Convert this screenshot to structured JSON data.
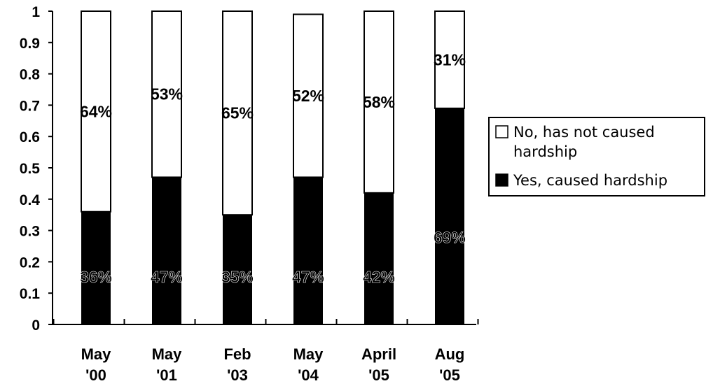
{
  "chart_data": {
    "type": "bar",
    "stacked": true,
    "categories": [
      [
        "May",
        "'00"
      ],
      [
        "May",
        "'01"
      ],
      [
        "Feb",
        "'03"
      ],
      [
        "May",
        "'04"
      ],
      [
        "April",
        "'05"
      ],
      [
        "Aug",
        "'05"
      ]
    ],
    "series": [
      {
        "name": "Yes, caused hardship",
        "values": [
          0.36,
          0.47,
          0.35,
          0.47,
          0.42,
          0.69
        ],
        "labels": [
          "36%",
          "47%",
          "35%",
          "47%",
          "42%",
          "69%"
        ],
        "color": "#000000"
      },
      {
        "name": "No, has not caused hardship",
        "values": [
          0.64,
          0.53,
          0.65,
          0.52,
          0.58,
          0.31
        ],
        "labels": [
          "64%",
          "53%",
          "65%",
          "52%",
          "58%",
          "31%"
        ],
        "color": "#ffffff"
      }
    ],
    "ylim": [
      0,
      1
    ],
    "yticks": [
      "0",
      "0.1",
      "0.2",
      "0.3",
      "0.4",
      "0.5",
      "0.6",
      "0.7",
      "0.8",
      "0.9",
      "1"
    ],
    "legend": {
      "placement": "right",
      "entries": [
        {
          "lines": [
            "No, has not caused",
            "hardship"
          ],
          "color": "#ffffff"
        },
        {
          "lines": [
            "Yes, caused hardship"
          ],
          "color": "#000000"
        }
      ]
    },
    "grid": false
  }
}
